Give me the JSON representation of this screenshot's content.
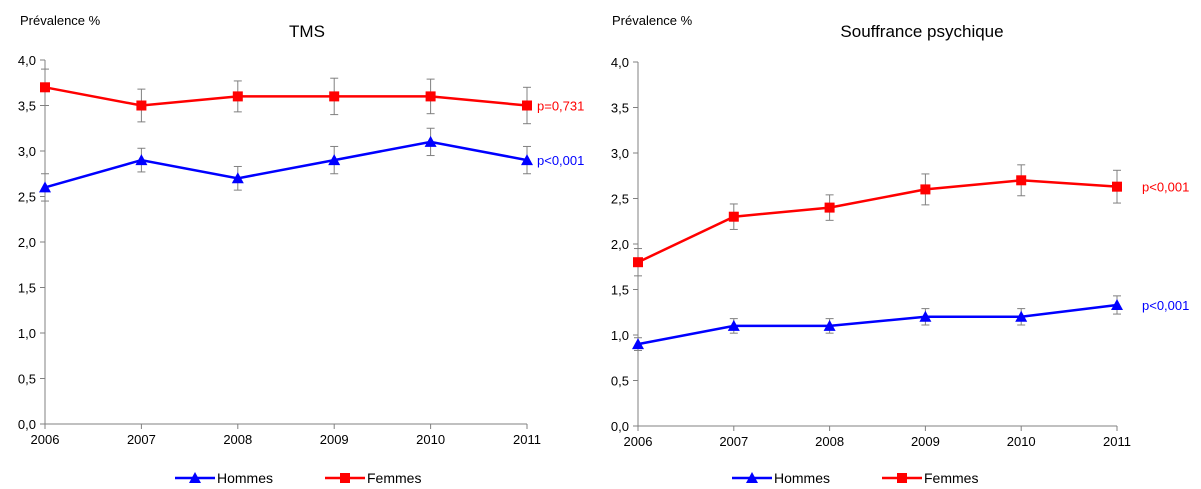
{
  "chart_data": [
    {
      "type": "line",
      "title": "TMS",
      "ylabel": "Prévalence %",
      "xlabel": "",
      "x": [
        "2006",
        "2007",
        "2008",
        "2009",
        "2010",
        "2011"
      ],
      "ylim": [
        0,
        4
      ],
      "yticks": [
        "0,0",
        "0,5",
        "1,0",
        "1,5",
        "2,0",
        "2,5",
        "3,0",
        "3,5",
        "4,0"
      ],
      "grid": false,
      "legend": "bottom",
      "series": [
        {
          "name": "Hommes",
          "color": "#0000ff",
          "marker": "triangle",
          "values": [
            2.6,
            2.9,
            2.7,
            2.9,
            3.1,
            2.9
          ],
          "error": [
            0.15,
            0.13,
            0.13,
            0.15,
            0.15,
            0.15
          ],
          "annotation": "p<0,001"
        },
        {
          "name": "Femmes",
          "color": "#ff0000",
          "marker": "square",
          "values": [
            3.7,
            3.5,
            3.6,
            3.6,
            3.6,
            3.5
          ],
          "error": [
            0.2,
            0.18,
            0.17,
            0.2,
            0.19,
            0.2
          ],
          "annotation": "p=0,731"
        }
      ]
    },
    {
      "type": "line",
      "title": "Souffrance psychique",
      "ylabel": "Prévalence %",
      "xlabel": "",
      "x": [
        "2006",
        "2007",
        "2008",
        "2009",
        "2010",
        "2011"
      ],
      "ylim": [
        0,
        4
      ],
      "yticks": [
        "0,0",
        "0,5",
        "1,0",
        "1,5",
        "2,0",
        "2,5",
        "3,0",
        "3,5",
        "4,0"
      ],
      "grid": false,
      "legend": "bottom",
      "series": [
        {
          "name": "Hommes",
          "color": "#0000ff",
          "marker": "triangle",
          "values": [
            0.9,
            1.1,
            1.1,
            1.2,
            1.2,
            1.33
          ],
          "error": [
            0.07,
            0.08,
            0.08,
            0.09,
            0.09,
            0.1
          ],
          "annotation": "p<0,001"
        },
        {
          "name": "Femmes",
          "color": "#ff0000",
          "marker": "square",
          "values": [
            1.8,
            2.3,
            2.4,
            2.6,
            2.7,
            2.63
          ],
          "error": [
            0.15,
            0.14,
            0.14,
            0.17,
            0.17,
            0.18
          ],
          "annotation": "p<0,001"
        }
      ]
    }
  ]
}
